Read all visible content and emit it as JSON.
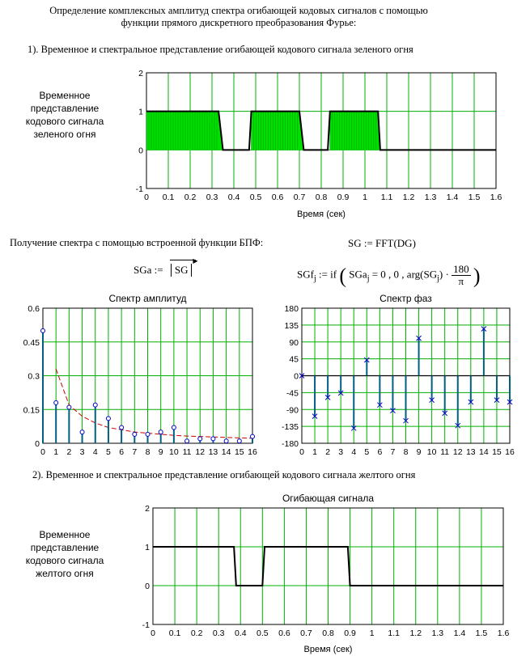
{
  "header": {
    "title_line1": "Определение комплексных амплитуд спектра огибающей кодовых сигналов с помощью",
    "title_line2": "функции прямого дискретного преобразования Фурье:"
  },
  "section1": {
    "heading": "1). Временное и спектральное представление огибающей кодового сигнала зеленого огня",
    "side_label": [
      "Временное",
      "представление",
      "кодового сигнала",
      "зеленого огня"
    ]
  },
  "fft": {
    "caption": "Получение спектра с помощью встроенной функции БПФ:",
    "formula_sg": "SG := FFT(DG)",
    "formula_sga_lhs": "SGa :=",
    "formula_sga_arg": "SG",
    "formula_sgf_lhs": "SGf",
    "formula_sgf_sub": "j",
    "formula_sgf_body_1": ":= if",
    "formula_sgf_body_2": "SGa",
    "formula_sgf_body_3": "= 0 , 0 , arg",
    "formula_sgf_body_4": "SG",
    "formula_sgf_num": "180",
    "formula_sgf_den": "π"
  },
  "section2": {
    "heading": "2). Временное и спектральное представление огибающей кодового сигнала желтого огня",
    "side_label": [
      "Временное",
      "представление",
      "кодового сигнала",
      "желтого огня"
    ]
  },
  "colors": {
    "grid": "#00b000",
    "fill": "#00e000",
    "stem": "#006080",
    "marker": "#0000cc",
    "trend": "#cc0000"
  },
  "chart_data": [
    {
      "type": "area",
      "xlabel": "Время (сек)",
      "xlim": [
        0,
        1.6
      ],
      "ylim": [
        -1,
        2
      ],
      "xticks": [
        "0",
        "0.1",
        "0.2",
        "0.3",
        "0.4",
        "0.5",
        "0.6",
        "0.7",
        "0.8",
        "0.9",
        "1",
        "1.1",
        "1.2",
        "1.3",
        "1.4",
        "1.5",
        "1.6"
      ],
      "yticks": [
        "-1",
        "0",
        "1",
        "2"
      ],
      "x": [
        0,
        0.33,
        0.35,
        0.47,
        0.48,
        0.7,
        0.72,
        0.83,
        0.84,
        1.06,
        1.07,
        1.6
      ],
      "y": [
        1,
        1,
        0,
        0,
        1,
        1,
        0,
        0,
        1,
        1,
        0,
        0
      ]
    },
    {
      "type": "bar",
      "title": "Спектр амплитуд",
      "xlim": [
        0,
        16
      ],
      "ylim": [
        0,
        0.6
      ],
      "xticks": [
        "0",
        "1",
        "2",
        "3",
        "4",
        "5",
        "6",
        "7",
        "8",
        "9",
        "10",
        "11",
        "12",
        "13",
        "14",
        "15",
        "16"
      ],
      "yticks": [
        "0",
        "0.15",
        "0.3",
        "0.45",
        "0.6"
      ],
      "x": [
        0,
        1,
        2,
        3,
        4,
        5,
        6,
        7,
        8,
        9,
        10,
        11,
        12,
        13,
        14,
        15,
        16
      ],
      "values": [
        0.5,
        0.18,
        0.16,
        0.05,
        0.17,
        0.11,
        0.07,
        0.04,
        0.04,
        0.05,
        0.07,
        0.01,
        0.02,
        0.02,
        0.01,
        0.01,
        0.03
      ],
      "trend_x": [
        1,
        2,
        3,
        4,
        5,
        6,
        7,
        8,
        9,
        10,
        11,
        12,
        13,
        14,
        15,
        16
      ],
      "trend_y": [
        0.33,
        0.17,
        0.12,
        0.09,
        0.07,
        0.06,
        0.05,
        0.045,
        0.04,
        0.035,
        0.032,
        0.03,
        0.028,
        0.026,
        0.024,
        0.022
      ]
    },
    {
      "type": "bar",
      "title": "Спектр фаз",
      "xlim": [
        0,
        16
      ],
      "ylim": [
        -180,
        180
      ],
      "xticks": [
        "0",
        "1",
        "2",
        "3",
        "4",
        "5",
        "6",
        "7",
        "8",
        "9",
        "10",
        "11",
        "12",
        "13",
        "14",
        "15",
        "16"
      ],
      "yticks": [
        "-180",
        "-135",
        "-90",
        "-45",
        "0",
        "45",
        "90",
        "135",
        "180"
      ],
      "x": [
        0,
        1,
        2,
        3,
        4,
        5,
        6,
        7,
        8,
        9,
        10,
        11,
        12,
        13,
        14,
        15,
        16
      ],
      "values": [
        0,
        -108,
        -58,
        -46,
        -140,
        42,
        -78,
        -93,
        -120,
        100,
        -65,
        -100,
        -133,
        -70,
        125,
        -65,
        -70
      ]
    },
    {
      "type": "line",
      "title": "Огибающая сигнала",
      "xlabel": "Время (сек)",
      "xlim": [
        0,
        1.6
      ],
      "ylim": [
        -1,
        2
      ],
      "xticks": [
        "0",
        "0.1",
        "0.2",
        "0.3",
        "0.4",
        "0.5",
        "0.6",
        "0.7",
        "0.8",
        "0.9",
        "1",
        "1.1",
        "1.2",
        "1.3",
        "1.4",
        "1.5",
        "1.6"
      ],
      "yticks": [
        "-1",
        "0",
        "1",
        "2"
      ],
      "x": [
        0,
        0.37,
        0.38,
        0.5,
        0.51,
        0.89,
        0.9,
        1.6
      ],
      "y": [
        1,
        1,
        0,
        0,
        1,
        1,
        0,
        0
      ]
    }
  ]
}
